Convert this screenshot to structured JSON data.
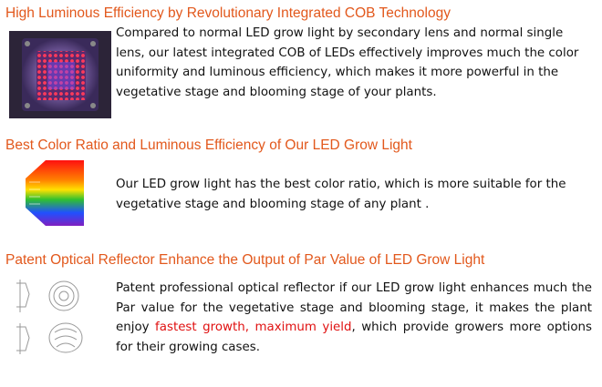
{
  "sections": [
    {
      "heading": "High Luminous Efficiency by Revolutionary Integrated COB Technology",
      "paragraph": [
        "Compared to normal LED grow light by secondary lens and normal single lens, our latest integrated COB of LEDs effectively improves much the color uniformity and luminous efficiency, which makes it more powerful in the vegetative stage and blooming stage of your plants."
      ]
    },
    {
      "heading": "Best Color Ratio and Luminous Efficiency of Our LED Grow Light",
      "paragraph": [
        "Our LED grow light has the best color ratio, which is more suitable for the vegetative stage and blooming stage of any plant ."
      ]
    },
    {
      "heading": "Patent Optical Reflector Enhance the Output of Par Value of LED Grow Light",
      "paragraph": [
        "Patent professional optical reflector if our LED grow light enhances much the Par value for the vegetative stage and blooming stage, it makes the plant enjoy ",
        "fastest growth, maximum yield",
        ", which provide growers more options for their growing cases."
      ]
    }
  ]
}
